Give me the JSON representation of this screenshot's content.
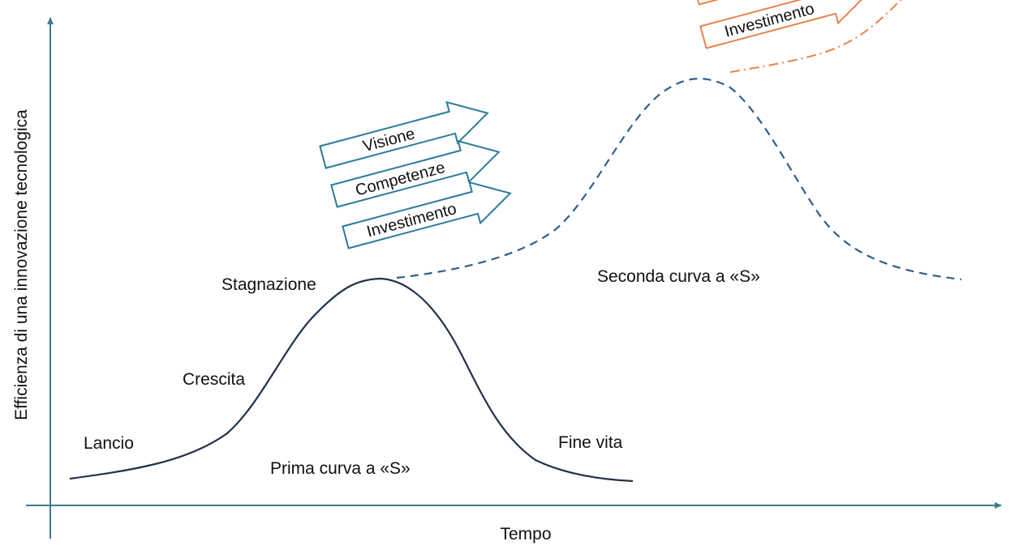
{
  "axes": {
    "x_label": "Tempo",
    "y_label": "Efficienza di una innovazione tecnologica"
  },
  "stages": {
    "launch": "Lancio",
    "growth": "Crescita",
    "stagnation": "Stagnazione",
    "end_of_life": "Fine vita"
  },
  "curves": {
    "first": "Prima curva a «S»",
    "second": "Seconda curva a «S»"
  },
  "blue_arrows": [
    "Visione",
    "Competenze",
    "Investimento"
  ],
  "orange_arrows": [
    "Investimento"
  ],
  "colors": {
    "axis": "#3e7a8e",
    "first_curve": "#1f3349",
    "second_curve": "#2e5f8e",
    "third_curve": "#e8834a",
    "blue_arrow": "#2a7c99",
    "orange_arrow": "#e8834a"
  }
}
